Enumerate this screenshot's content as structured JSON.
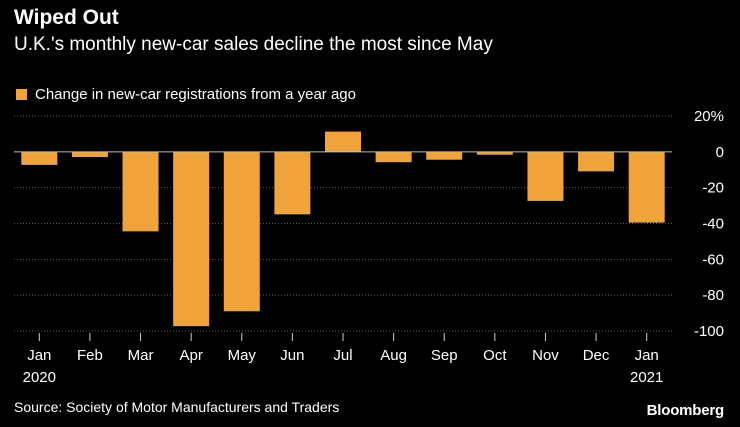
{
  "title": "Wiped Out",
  "subtitle": "U.K.'s monthly new-car sales decline the most since May",
  "source": "Source: Society of Motor Manufacturers and Traders",
  "brand": "Bloomberg",
  "colors": {
    "bar": "#f0a33a",
    "grid": "#5a5a5a",
    "zero": "#bdbdbd",
    "background": "#000000"
  },
  "chart_data": {
    "type": "bar",
    "legend": "Change in new-car registrations from a year ago",
    "categories": [
      "Jan",
      "Feb",
      "Mar",
      "Apr",
      "May",
      "Jun",
      "Jul",
      "Aug",
      "Sep",
      "Oct",
      "Nov",
      "Dec",
      "Jan"
    ],
    "category_years": [
      "2020",
      "",
      "",
      "",
      "",
      "",
      "",
      "",
      "",
      "",
      "",
      "",
      "2021"
    ],
    "values": [
      -7.3,
      -2.9,
      -44.4,
      -97.3,
      -89.0,
      -34.9,
      11.3,
      -5.8,
      -4.4,
      -1.6,
      -27.4,
      -10.9,
      -39.5
    ],
    "ylim": [
      -100,
      20
    ],
    "yticks": [
      20,
      0,
      -20,
      -40,
      -60,
      -80,
      -100
    ],
    "ytick_labels": [
      "20%",
      "0",
      "-20",
      "-40",
      "-60",
      "-80",
      "-100"
    ],
    "y_axis_position": "right",
    "grid": true
  }
}
